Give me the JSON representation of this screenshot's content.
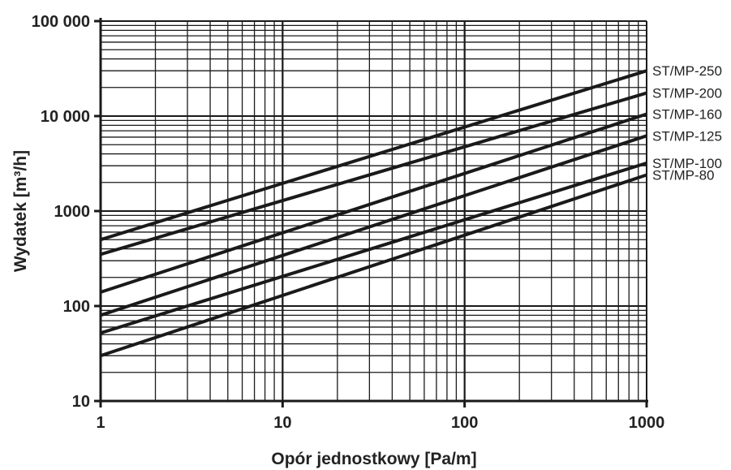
{
  "chart_data": {
    "type": "line",
    "xlabel": "Opór jednostkowy  [Pa/m]",
    "ylabel": "Wydatek  [m³/h]",
    "x_scale": "log",
    "y_scale": "log",
    "xlim": [
      1,
      1000
    ],
    "ylim": [
      10,
      100000
    ],
    "grid": true,
    "x_tick_labels": [
      {
        "value": 1,
        "label": "1"
      },
      {
        "value": 10,
        "label": "10"
      },
      {
        "value": 100,
        "label": "100"
      },
      {
        "value": 1000,
        "label": "1000"
      }
    ],
    "y_tick_labels": [
      {
        "value": 10,
        "label": "10"
      },
      {
        "value": 100,
        "label": "100"
      },
      {
        "value": 1000,
        "label": "1000"
      },
      {
        "value": 10000,
        "label": "10 000"
      },
      {
        "value": 100000,
        "label": "100 000"
      }
    ],
    "legend_placement": "right",
    "series": [
      {
        "name": "ST/MP-250",
        "x": [
          1,
          1000
        ],
        "y": [
          500,
          30000
        ]
      },
      {
        "name": "ST/MP-200",
        "x": [
          1,
          1000
        ],
        "y": [
          350,
          17500
        ]
      },
      {
        "name": "ST/MP-160",
        "x": [
          1,
          1000
        ],
        "y": [
          140,
          10500
        ]
      },
      {
        "name": "ST/MP-125",
        "x": [
          1,
          1000
        ],
        "y": [
          80,
          6200
        ]
      },
      {
        "name": "ST/MP-100",
        "x": [
          1,
          1000
        ],
        "y": [
          52,
          3200
        ]
      },
      {
        "name": "ST/MP-80",
        "x": [
          1,
          1000
        ],
        "y": [
          30,
          2400
        ]
      }
    ],
    "colors": {
      "line": "#1a1a1a",
      "grid": "#1a1a1a",
      "background": "#ffffff"
    }
  }
}
